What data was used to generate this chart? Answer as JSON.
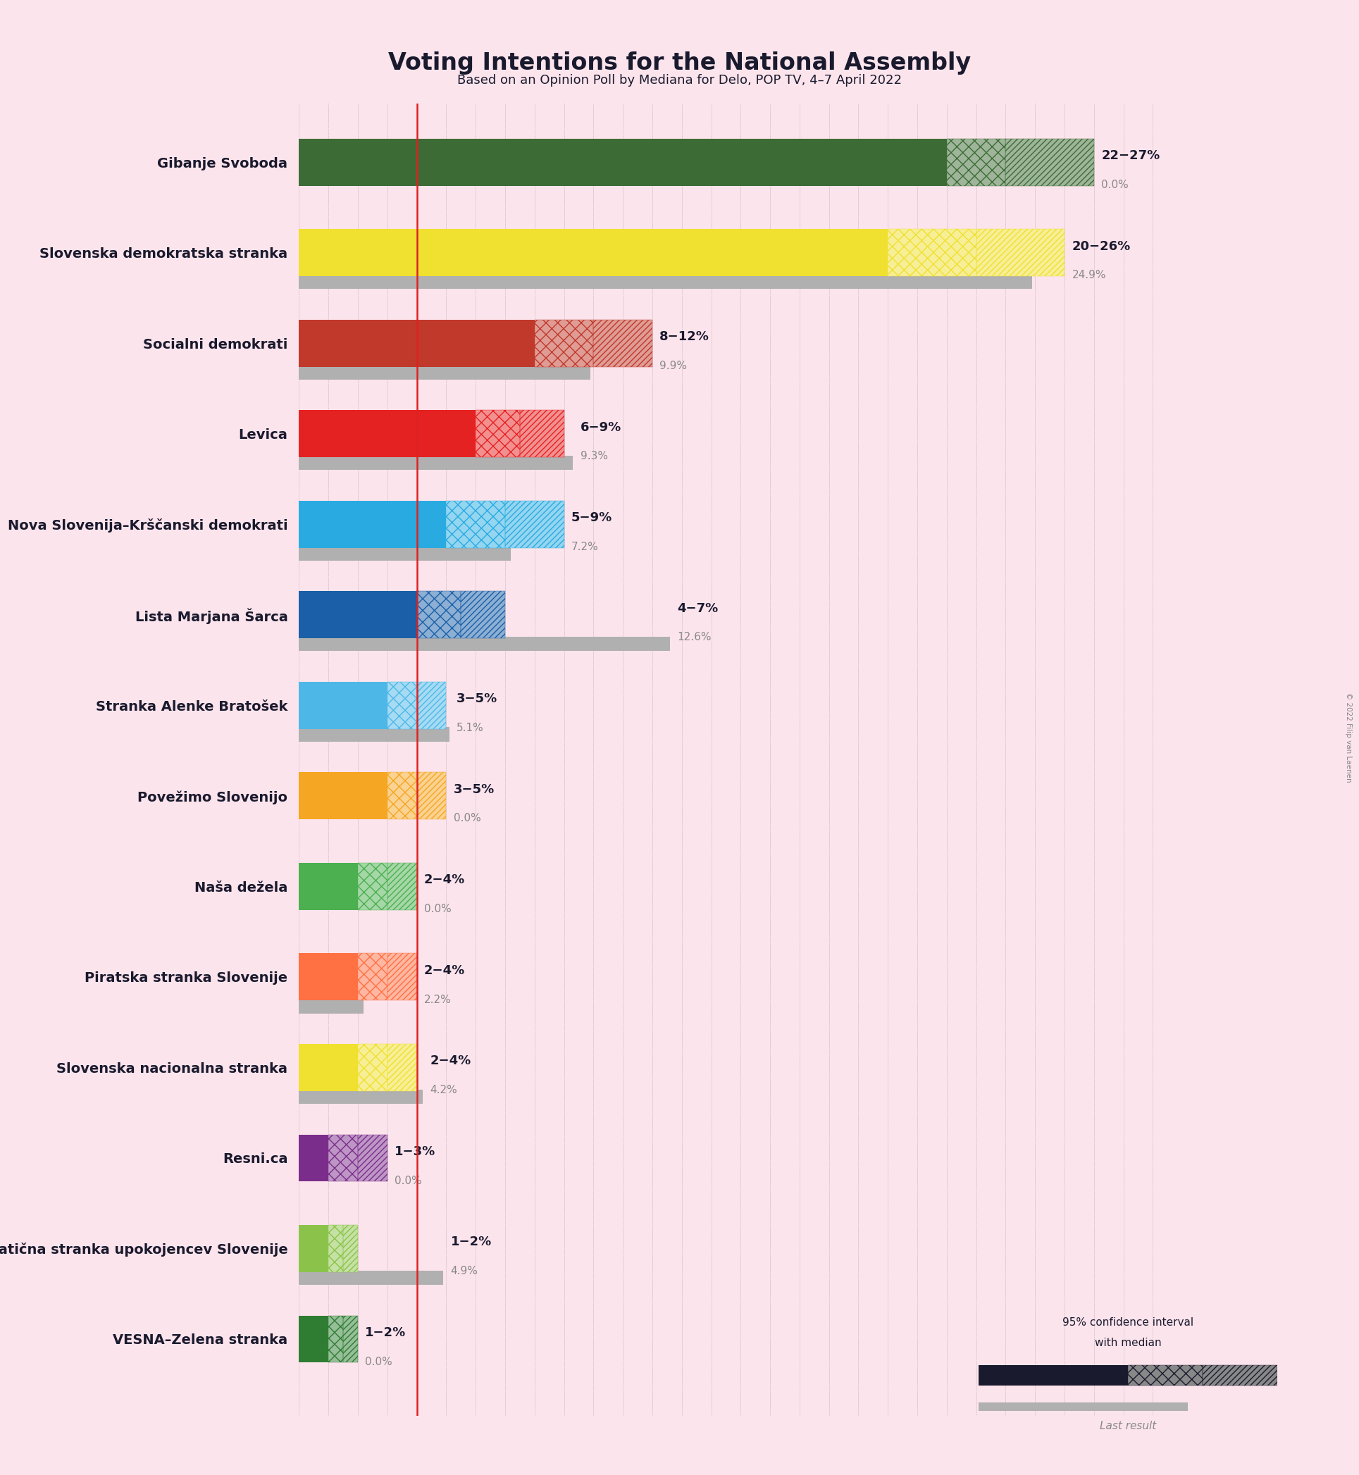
{
  "title": "Voting Intentions for the National Assembly",
  "subtitle": "Based on an Opinion Poll by Mediana for Delo, POP TV, 4–7 April 2022",
  "background_color": "#fce4ec",
  "parties": [
    {
      "name": "Gibanje Svoboda",
      "ci_low": 22,
      "ci_mid": 24,
      "ci_high": 27,
      "last_result": 0.0,
      "color": "#3d6b35",
      "range_label": "22−27%",
      "last_label": "0.0%"
    },
    {
      "name": "Slovenska demokratska stranka",
      "ci_low": 20,
      "ci_mid": 23,
      "ci_high": 26,
      "last_result": 24.9,
      "color": "#f0e030",
      "range_label": "20−26%",
      "last_label": "24.9%"
    },
    {
      "name": "Socialni demokrati",
      "ci_low": 8,
      "ci_mid": 10,
      "ci_high": 12,
      "last_result": 9.9,
      "color": "#c0392b",
      "range_label": "8−12%",
      "last_label": "9.9%"
    },
    {
      "name": "Levica",
      "ci_low": 6,
      "ci_mid": 7.5,
      "ci_high": 9,
      "last_result": 9.3,
      "color": "#e52222",
      "range_label": "6−9%",
      "last_label": "9.3%"
    },
    {
      "name": "Nova Slovenija–Krščanski demokrati",
      "ci_low": 5,
      "ci_mid": 7,
      "ci_high": 9,
      "last_result": 7.2,
      "color": "#29abe2",
      "range_label": "5−9%",
      "last_label": "7.2%"
    },
    {
      "name": "Lista Marjana Šarca",
      "ci_low": 4,
      "ci_mid": 5.5,
      "ci_high": 7,
      "last_result": 12.6,
      "color": "#1a5fa8",
      "range_label": "4−7%",
      "last_label": "12.6%"
    },
    {
      "name": "Stranka Alenke Bratošek",
      "ci_low": 3,
      "ci_mid": 4,
      "ci_high": 5,
      "last_result": 5.1,
      "color": "#4db8e8",
      "range_label": "3−5%",
      "last_label": "5.1%"
    },
    {
      "name": "Povežimo Slovenijo",
      "ci_low": 3,
      "ci_mid": 4,
      "ci_high": 5,
      "last_result": 0.0,
      "color": "#f5a623",
      "range_label": "3−5%",
      "last_label": "0.0%"
    },
    {
      "name": "Naša dežela",
      "ci_low": 2,
      "ci_mid": 3,
      "ci_high": 4,
      "last_result": 0.0,
      "color": "#4caf50",
      "range_label": "2−4%",
      "last_label": "0.0%"
    },
    {
      "name": "Piratska stranka Slovenije",
      "ci_low": 2,
      "ci_mid": 3,
      "ci_high": 4,
      "last_result": 2.2,
      "color": "#ff7043",
      "range_label": "2−4%",
      "last_label": "2.2%"
    },
    {
      "name": "Slovenska nacionalna stranka",
      "ci_low": 2,
      "ci_mid": 3,
      "ci_high": 4,
      "last_result": 4.2,
      "color": "#f0e030",
      "range_label": "2−4%",
      "last_label": "4.2%"
    },
    {
      "name": "Resni.ca",
      "ci_low": 1,
      "ci_mid": 2,
      "ci_high": 3,
      "last_result": 0.0,
      "color": "#7b2d8b",
      "range_label": "1−3%",
      "last_label": "0.0%"
    },
    {
      "name": "Demokratična stranka upokojencev Slovenije",
      "ci_low": 1,
      "ci_mid": 1.5,
      "ci_high": 2,
      "last_result": 4.9,
      "color": "#8bc34a",
      "range_label": "1−2%",
      "last_label": "4.9%"
    },
    {
      "name": "VESNA–Zelena stranka",
      "ci_low": 1,
      "ci_mid": 1.5,
      "ci_high": 2,
      "last_result": 0.0,
      "color": "#2e7d32",
      "range_label": "1−2%",
      "last_label": "0.0%"
    }
  ],
  "xmax": 30,
  "threshold_line": 4,
  "copyright": "© 2022 Filip van Laenen"
}
